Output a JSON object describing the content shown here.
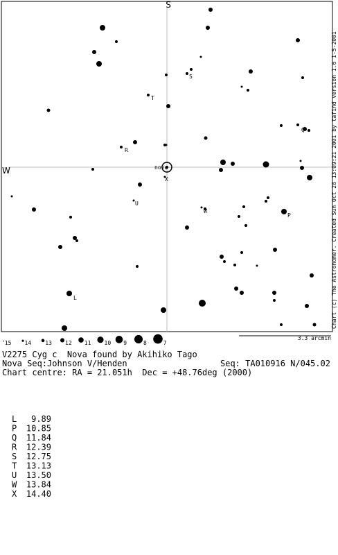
{
  "chart": {
    "top_label": "S",
    "left_label": "W",
    "credit": "Chart (c) The Astronomer. Created Sun Oct 28 13:09:21 2001 by tafind version 1.6 1-5-2001",
    "scale": "3.3 arcmin",
    "star_labels": [
      "S",
      "T",
      "R",
      "Q",
      "nova",
      "X",
      "U",
      "W",
      "P",
      "L"
    ],
    "magnitude_key": [
      "15",
      "14",
      "13",
      "12",
      "11",
      "10",
      "9",
      "8",
      "7"
    ]
  },
  "info": {
    "line1": "V2275 Cyg c  Nova found by Akihiko Tago",
    "line2_left": "Nova Seq:Johnson V/Henden",
    "line2_right": "Seq: TA010916 N/045.02",
    "line3": "Chart centre: RA = 21.051h  Dec = +48.76deg (2000)"
  },
  "sequence": [
    [
      "L",
      "9.89"
    ],
    [
      "P",
      "10.85"
    ],
    [
      "Q",
      "11.84"
    ],
    [
      "R",
      "12.39"
    ],
    [
      "S",
      "12.75"
    ],
    [
      "T",
      "13.13"
    ],
    [
      "U",
      "13.50"
    ],
    [
      "W",
      "13.84"
    ],
    [
      "X",
      "14.40"
    ]
  ]
}
